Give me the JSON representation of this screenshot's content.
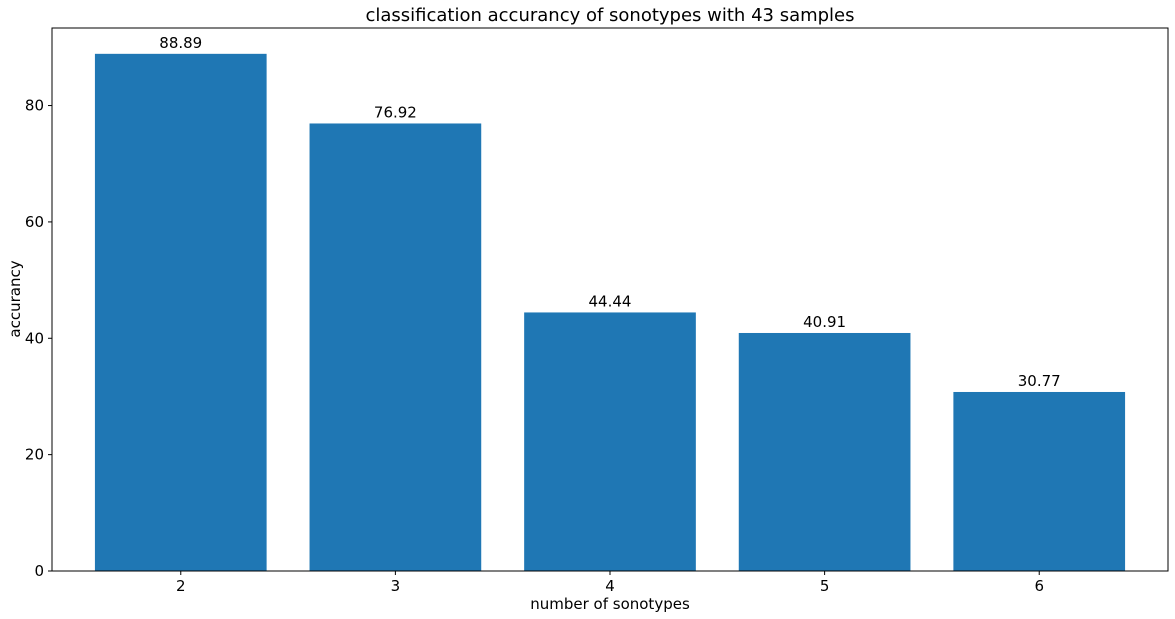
{
  "chart_data": {
    "type": "bar",
    "title": "classification accurancy of sonotypes with 43 samples",
    "xlabel": "number of sonotypes",
    "ylabel": "accurancy",
    "categories": [
      "2",
      "3",
      "4",
      "5",
      "6"
    ],
    "values": [
      88.89,
      76.92,
      44.44,
      40.91,
      30.77
    ],
    "data_labels": [
      "88.89",
      "76.92",
      "44.44",
      "40.91",
      "30.77"
    ],
    "ylim": [
      0,
      93.33
    ],
    "yticks": [
      0,
      20,
      40,
      60,
      80
    ],
    "bar_color": "#1f77b4",
    "grid": false,
    "legend": "none"
  }
}
